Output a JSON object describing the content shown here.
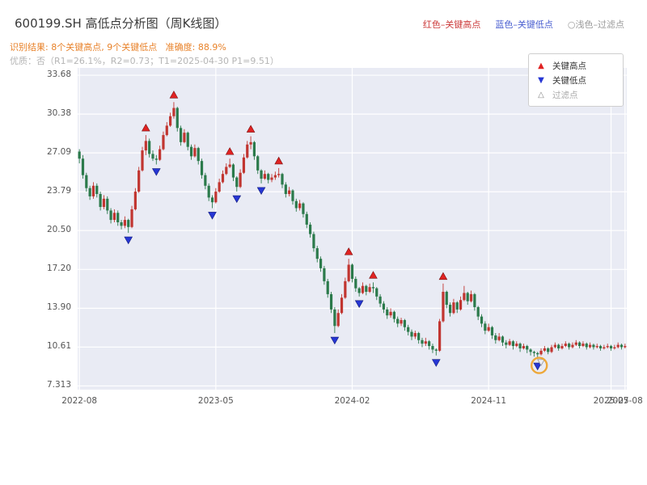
{
  "header": {
    "title": "600199.SH 高低点分析图（周K线图）",
    "legend_items": [
      {
        "text": "红色–关键高点",
        "color": "#cc3b3b"
      },
      {
        "text": "蓝色–关键低点",
        "color": "#4a5fd0"
      },
      {
        "text": "○浅色–过滤点",
        "color": "#9a9a9a"
      }
    ],
    "result_line": "识别结果: 8个关键高点, 9个关键低点   准确度: 88.9%",
    "quality_line": "优质：否（R1=26.1%，R2=0.73；T1=2025-04-30 P1=9.51）"
  },
  "stats": {
    "key_high_count": 8,
    "key_low_count": 9,
    "accuracy": "88.9%",
    "premium": "否",
    "R1": "26.1%",
    "R2": "0.73",
    "T1": "2025-04-30",
    "P1": "9.51"
  },
  "plot_legend": {
    "items": [
      {
        "marker": "▲",
        "label": "关键高点",
        "color": "#e02222"
      },
      {
        "marker": "▼",
        "label": "关键低点",
        "color": "#2636d4"
      },
      {
        "marker": "△",
        "label": "过滤点",
        "color": "#aaaaaa"
      }
    ]
  },
  "chart_data": {
    "type": "candlestick",
    "title": "600199.SH 高低点分析图（周K线图）",
    "ylim": [
      7.0,
      34.3
    ],
    "y_ticks": [
      {
        "value": 33.68,
        "label": "33.68"
      },
      {
        "value": 30.38,
        "label": "30.38"
      },
      {
        "value": 27.09,
        "label": "27.09"
      },
      {
        "value": 23.79,
        "label": "23.79"
      },
      {
        "value": 20.5,
        "label": "20.50"
      },
      {
        "value": 17.2,
        "label": "17.20"
      },
      {
        "value": 13.9,
        "label": "13.90"
      },
      {
        "value": 10.61,
        "label": "10.61"
      },
      {
        "value": 7.313,
        "label": "7.313"
      }
    ],
    "x_ticks": [
      {
        "index": 0,
        "label": "2022-08"
      },
      {
        "index": 39,
        "label": "2023-05"
      },
      {
        "index": 78,
        "label": "2024-02"
      },
      {
        "index": 117,
        "label": "2024-11"
      },
      {
        "index": 152,
        "label": "2025-07"
      },
      {
        "index": 156,
        "label": "2025-08"
      }
    ],
    "candles": [
      [
        27.2,
        27.4,
        26.2,
        26.6
      ],
      [
        26.6,
        26.9,
        24.9,
        25.2
      ],
      [
        25.2,
        25.4,
        23.8,
        24.1
      ],
      [
        24.1,
        24.3,
        23.1,
        23.4
      ],
      [
        23.4,
        24.6,
        23.2,
        24.3
      ],
      [
        24.3,
        24.5,
        23.3,
        23.6
      ],
      [
        23.6,
        23.8,
        22.2,
        22.5
      ],
      [
        22.5,
        23.5,
        22.3,
        23.2
      ],
      [
        23.2,
        23.4,
        21.9,
        22.2
      ],
      [
        22.2,
        22.4,
        21.1,
        21.4
      ],
      [
        21.4,
        22.3,
        21.2,
        22.0
      ],
      [
        22.0,
        22.2,
        20.9,
        21.2
      ],
      [
        21.2,
        21.4,
        20.6,
        20.9
      ],
      [
        20.9,
        21.7,
        20.7,
        21.4
      ],
      [
        21.4,
        21.5,
        20.3,
        20.8
      ],
      [
        20.8,
        22.6,
        20.7,
        22.3
      ],
      [
        22.3,
        24.1,
        22.2,
        23.8
      ],
      [
        23.8,
        25.9,
        23.7,
        25.6
      ],
      [
        25.6,
        27.6,
        25.5,
        27.3
      ],
      [
        27.3,
        28.6,
        26.9,
        28.1
      ],
      [
        28.1,
        28.3,
        26.7,
        27.0
      ],
      [
        27.0,
        27.3,
        26.4,
        26.6
      ],
      [
        26.6,
        26.9,
        26.1,
        26.5
      ],
      [
        26.5,
        27.7,
        26.4,
        27.4
      ],
      [
        27.4,
        28.9,
        27.3,
        28.6
      ],
      [
        28.6,
        29.7,
        28.5,
        29.4
      ],
      [
        29.4,
        30.5,
        29.3,
        30.2
      ],
      [
        30.2,
        31.4,
        30.0,
        30.9
      ],
      [
        30.9,
        31.0,
        28.9,
        29.2
      ],
      [
        29.2,
        29.4,
        27.7,
        28.0
      ],
      [
        28.0,
        29.1,
        27.9,
        28.8
      ],
      [
        28.8,
        28.9,
        27.3,
        27.6
      ],
      [
        27.6,
        27.8,
        26.5,
        26.8
      ],
      [
        26.8,
        27.8,
        26.7,
        27.5
      ],
      [
        27.5,
        27.6,
        26.1,
        26.4
      ],
      [
        26.4,
        26.6,
        24.9,
        25.2
      ],
      [
        25.2,
        25.4,
        24.0,
        24.3
      ],
      [
        24.3,
        24.5,
        23.0,
        23.3
      ],
      [
        23.3,
        23.5,
        22.4,
        22.9
      ],
      [
        22.9,
        24.1,
        22.8,
        23.8
      ],
      [
        23.8,
        24.9,
        23.7,
        24.6
      ],
      [
        24.6,
        25.6,
        24.5,
        25.3
      ],
      [
        25.3,
        26.2,
        25.2,
        25.9
      ],
      [
        25.9,
        26.6,
        25.8,
        26.1
      ],
      [
        26.1,
        26.2,
        24.7,
        25.0
      ],
      [
        25.0,
        25.1,
        23.8,
        24.2
      ],
      [
        24.2,
        25.7,
        24.1,
        25.4
      ],
      [
        25.4,
        27.0,
        25.3,
        26.7
      ],
      [
        26.7,
        28.1,
        26.6,
        27.8
      ],
      [
        27.8,
        28.5,
        27.4,
        28.0
      ],
      [
        28.0,
        28.1,
        26.5,
        26.8
      ],
      [
        26.8,
        26.9,
        25.3,
        25.6
      ],
      [
        25.6,
        25.7,
        24.5,
        24.9
      ],
      [
        24.9,
        25.6,
        24.8,
        25.3
      ],
      [
        25.3,
        25.4,
        24.5,
        24.8
      ],
      [
        24.8,
        25.3,
        24.6,
        25.0
      ],
      [
        25.0,
        25.5,
        24.8,
        25.2
      ],
      [
        25.2,
        25.8,
        25.0,
        25.3
      ],
      [
        25.3,
        25.4,
        24.1,
        24.4
      ],
      [
        24.4,
        24.6,
        23.3,
        23.6
      ],
      [
        23.6,
        24.2,
        23.4,
        23.9
      ],
      [
        23.9,
        24.0,
        22.7,
        23.0
      ],
      [
        23.0,
        23.2,
        22.1,
        22.4
      ],
      [
        22.4,
        23.1,
        22.2,
        22.8
      ],
      [
        22.8,
        22.9,
        21.6,
        21.9
      ],
      [
        21.9,
        22.1,
        20.7,
        21.0
      ],
      [
        21.0,
        21.2,
        19.9,
        20.2
      ],
      [
        20.2,
        20.4,
        18.7,
        19.0
      ],
      [
        19.0,
        19.2,
        17.8,
        18.1
      ],
      [
        18.1,
        18.3,
        17.0,
        17.3
      ],
      [
        17.3,
        17.5,
        15.9,
        16.2
      ],
      [
        16.2,
        16.4,
        14.8,
        15.1
      ],
      [
        15.1,
        15.3,
        13.5,
        13.8
      ],
      [
        13.8,
        14.0,
        11.8,
        12.4
      ],
      [
        12.4,
        13.8,
        12.3,
        13.5
      ],
      [
        13.5,
        15.1,
        13.4,
        14.8
      ],
      [
        14.8,
        16.5,
        14.7,
        16.2
      ],
      [
        16.2,
        18.1,
        16.1,
        17.6
      ],
      [
        17.6,
        17.7,
        16.1,
        16.4
      ],
      [
        16.4,
        16.6,
        15.3,
        15.6
      ],
      [
        15.6,
        15.7,
        14.9,
        15.2
      ],
      [
        15.2,
        16.1,
        15.1,
        15.8
      ],
      [
        15.8,
        15.9,
        15.0,
        15.3
      ],
      [
        15.3,
        16.0,
        15.2,
        15.7
      ],
      [
        15.7,
        16.1,
        15.2,
        15.6
      ],
      [
        15.6,
        15.7,
        14.6,
        14.9
      ],
      [
        14.9,
        15.1,
        14.0,
        14.3
      ],
      [
        14.3,
        14.5,
        13.5,
        13.8
      ],
      [
        13.8,
        14.0,
        13.0,
        13.3
      ],
      [
        13.3,
        13.9,
        13.1,
        13.6
      ],
      [
        13.6,
        13.7,
        12.7,
        13.0
      ],
      [
        13.0,
        13.2,
        12.3,
        12.6
      ],
      [
        12.6,
        13.1,
        12.4,
        12.9
      ],
      [
        12.9,
        13.0,
        12.0,
        12.3
      ],
      [
        12.3,
        12.5,
        11.6,
        11.9
      ],
      [
        11.9,
        12.1,
        11.2,
        11.5
      ],
      [
        11.5,
        12.0,
        11.3,
        11.8
      ],
      [
        11.8,
        11.9,
        10.9,
        11.2
      ],
      [
        11.2,
        11.4,
        10.6,
        10.9
      ],
      [
        10.9,
        11.4,
        10.7,
        11.1
      ],
      [
        11.1,
        11.2,
        10.4,
        10.7
      ],
      [
        10.7,
        10.9,
        10.1,
        10.4
      ],
      [
        10.4,
        10.5,
        9.9,
        10.3
      ],
      [
        10.3,
        13.0,
        10.2,
        12.8
      ],
      [
        12.8,
        16.0,
        12.7,
        15.3
      ],
      [
        15.3,
        15.4,
        13.9,
        14.2
      ],
      [
        14.2,
        14.4,
        13.2,
        13.5
      ],
      [
        13.5,
        14.7,
        13.4,
        14.4
      ],
      [
        14.4,
        14.5,
        13.5,
        13.8
      ],
      [
        13.8,
        14.9,
        13.7,
        14.6
      ],
      [
        14.6,
        15.8,
        14.5,
        15.2
      ],
      [
        15.2,
        15.3,
        14.2,
        14.5
      ],
      [
        14.5,
        15.4,
        14.4,
        15.1
      ],
      [
        15.1,
        15.2,
        13.7,
        14.0
      ],
      [
        14.0,
        14.1,
        12.9,
        13.2
      ],
      [
        13.2,
        13.4,
        12.3,
        12.6
      ],
      [
        12.6,
        12.8,
        11.7,
        12.0
      ],
      [
        12.0,
        12.6,
        11.9,
        12.3
      ],
      [
        12.3,
        12.4,
        11.3,
        11.6
      ],
      [
        11.6,
        11.8,
        10.9,
        11.2
      ],
      [
        11.2,
        11.8,
        11.1,
        11.5
      ],
      [
        11.5,
        11.6,
        10.7,
        11.0
      ],
      [
        11.0,
        11.2,
        10.5,
        10.8
      ],
      [
        10.8,
        11.3,
        10.7,
        11.1
      ],
      [
        11.1,
        11.2,
        10.4,
        10.7
      ],
      [
        10.7,
        11.1,
        10.6,
        10.9
      ],
      [
        10.9,
        11.0,
        10.2,
        10.5
      ],
      [
        10.5,
        10.9,
        10.4,
        10.7
      ],
      [
        10.7,
        10.8,
        10.1,
        10.4
      ],
      [
        10.4,
        10.5,
        9.9,
        10.2
      ],
      [
        10.2,
        10.3,
        9.8,
        10.1
      ],
      [
        10.1,
        10.2,
        9.6,
        10.0
      ],
      [
        10.0,
        10.5,
        9.9,
        10.3
      ],
      [
        10.3,
        10.7,
        10.2,
        10.5
      ],
      [
        10.5,
        10.6,
        10.0,
        10.2
      ],
      [
        10.2,
        10.8,
        10.1,
        10.6
      ],
      [
        10.6,
        11.0,
        10.5,
        10.8
      ],
      [
        10.8,
        10.9,
        10.3,
        10.5
      ],
      [
        10.5,
        10.9,
        10.4,
        10.7
      ],
      [
        10.7,
        11.1,
        10.6,
        10.9
      ],
      [
        10.9,
        11.0,
        10.4,
        10.6
      ],
      [
        10.6,
        11.0,
        10.5,
        10.8
      ],
      [
        10.8,
        11.2,
        10.7,
        11.0
      ],
      [
        11.0,
        11.1,
        10.5,
        10.7
      ],
      [
        10.7,
        11.1,
        10.6,
        10.9
      ],
      [
        10.9,
        11.0,
        10.4,
        10.6
      ],
      [
        10.6,
        11.0,
        10.5,
        10.8
      ],
      [
        10.8,
        10.9,
        10.4,
        10.6
      ],
      [
        10.6,
        10.9,
        10.5,
        10.7
      ],
      [
        10.7,
        10.8,
        10.3,
        10.5
      ],
      [
        10.5,
        10.8,
        10.4,
        10.6
      ],
      [
        10.6,
        10.9,
        10.5,
        10.7
      ],
      [
        10.7,
        10.8,
        10.3,
        10.5
      ],
      [
        10.5,
        10.8,
        10.4,
        10.6
      ],
      [
        10.6,
        11.0,
        10.5,
        10.8
      ],
      [
        10.8,
        10.9,
        10.4,
        10.6
      ],
      [
        10.6,
        10.9,
        10.5,
        10.7
      ]
    ],
    "markers": {
      "key_highs": [
        {
          "i": 19,
          "p": 28.6
        },
        {
          "i": 27,
          "p": 31.4
        },
        {
          "i": 43,
          "p": 26.6
        },
        {
          "i": 49,
          "p": 28.5
        },
        {
          "i": 57,
          "p": 25.8
        },
        {
          "i": 77,
          "p": 18.1
        },
        {
          "i": 84,
          "p": 16.1
        },
        {
          "i": 104,
          "p": 16.0
        }
      ],
      "key_lows": [
        {
          "i": 14,
          "p": 20.3
        },
        {
          "i": 22,
          "p": 26.1
        },
        {
          "i": 38,
          "p": 22.4
        },
        {
          "i": 45,
          "p": 23.8
        },
        {
          "i": 52,
          "p": 24.5
        },
        {
          "i": 73,
          "p": 11.8
        },
        {
          "i": 80,
          "p": 14.9
        },
        {
          "i": 102,
          "p": 9.9
        },
        {
          "i": 131,
          "p": 9.6
        }
      ],
      "filtered": [
        {
          "i": 132,
          "p": 9.9
        }
      ],
      "highlight_circle": {
        "i": 131,
        "p": 9.6
      }
    },
    "colors": {
      "up": "#c13530",
      "down": "#2b7a4b",
      "key_high": "#e02222",
      "key_low": "#2636d4",
      "filtered_fill": "#eceef6",
      "filtered_edge": "#999999",
      "highlight": "#eda83a",
      "plot_bg": "#e9ebf4",
      "grid": "#ffffff"
    }
  }
}
